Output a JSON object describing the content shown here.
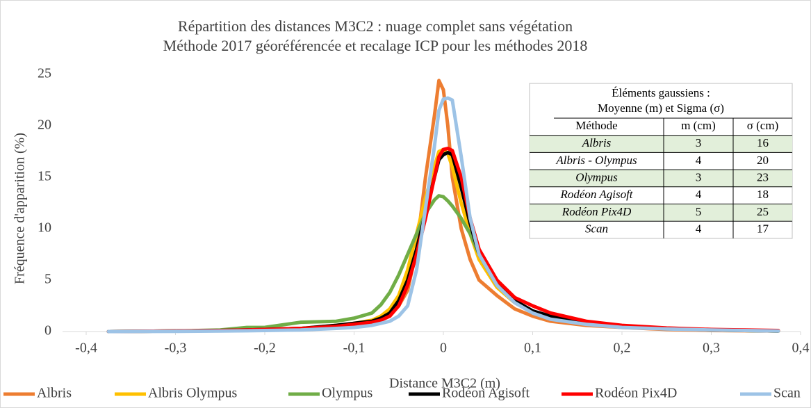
{
  "chart_data": {
    "type": "line",
    "title": [
      "Répartition des distances M3C2 : nuage complet sans végétation",
      "Méthode 2017 géoréférencée et recalage ICP pour les méthodes 2018"
    ],
    "x_label": "Distance M3C2 (m)",
    "y_label": "Fréquence d'apparition (%)",
    "x": [
      -0.375,
      -0.3,
      -0.25,
      -0.22,
      -0.2,
      -0.16,
      -0.12,
      -0.1,
      -0.08,
      -0.07,
      -0.06,
      -0.05,
      -0.04,
      -0.03,
      -0.02,
      -0.01,
      -0.005,
      0,
      0.005,
      0.01,
      0.02,
      0.03,
      0.04,
      0.06,
      0.08,
      0.1,
      0.12,
      0.16,
      0.2,
      0.25,
      0.3,
      0.375
    ],
    "series": [
      {
        "name": "Albris",
        "color": "#ed7d31",
        "values": [
          0,
          0.05,
          0.1,
          0.15,
          0.2,
          0.3,
          0.5,
          0.7,
          1,
          1.3,
          1.7,
          2.5,
          4,
          8,
          15,
          21,
          24.4,
          23.5,
          20,
          15,
          10,
          7,
          5,
          3.5,
          2.2,
          1.5,
          1,
          0.6,
          0.4,
          0.2,
          0.1,
          0.05
        ]
      },
      {
        "name": "Albris Olympus",
        "color": "#ffc000",
        "values": [
          0,
          0.05,
          0.1,
          0.15,
          0.2,
          0.3,
          0.6,
          0.8,
          1.1,
          1.5,
          2.2,
          3.5,
          6,
          9.5,
          13,
          16,
          17.5,
          17.7,
          17.3,
          16,
          12.5,
          9.5,
          7,
          4.3,
          2.8,
          1.9,
          1.3,
          0.8,
          0.5,
          0.3,
          0.15,
          0.05
        ]
      },
      {
        "name": "Olympus",
        "color": "#70ad47",
        "values": [
          0,
          0.05,
          0.15,
          0.4,
          0.4,
          0.9,
          1,
          1.3,
          1.8,
          2.6,
          3.8,
          5.5,
          7.5,
          9.5,
          11.5,
          12.8,
          13.2,
          13.1,
          12.7,
          12.2,
          11,
          9.5,
          7.5,
          4.8,
          3,
          2,
          1.4,
          0.8,
          0.5,
          0.3,
          0.15,
          0.05
        ]
      },
      {
        "name": "Rodéon Agisoft",
        "color": "#000000",
        "values": [
          0,
          0.05,
          0.1,
          0.15,
          0.2,
          0.3,
          0.6,
          0.8,
          1,
          1.3,
          1.8,
          3,
          5,
          8,
          11.5,
          15,
          16.7,
          17.2,
          17.4,
          17.2,
          14,
          10.5,
          7.5,
          4.5,
          3,
          2,
          1.5,
          0.9,
          0.5,
          0.3,
          0.15,
          0.05
        ]
      },
      {
        "name": "Rodéon Pix4D",
        "color": "#ff0000",
        "values": [
          0,
          0.05,
          0.1,
          0.15,
          0.2,
          0.3,
          0.5,
          0.7,
          0.9,
          1.1,
          1.5,
          2.5,
          4.5,
          7.5,
          11,
          15,
          17,
          17.7,
          17.8,
          17.6,
          15,
          11,
          8,
          5,
          3.3,
          2.5,
          1.8,
          1,
          0.6,
          0.35,
          0.2,
          0.1
        ]
      },
      {
        "name": "Scan",
        "color": "#9dc3e6",
        "values": [
          0,
          0.02,
          0.05,
          0.08,
          0.1,
          0.15,
          0.3,
          0.4,
          0.6,
          0.8,
          1,
          1.5,
          2.5,
          6,
          12,
          18,
          21.5,
          22.6,
          22.7,
          22.5,
          17,
          11,
          7.5,
          4.5,
          2.8,
          1.8,
          1.2,
          0.7,
          0.4,
          0.25,
          0.15,
          0.05
        ]
      }
    ],
    "xlim": [
      -0.4,
      0.4
    ],
    "xticks": [
      {
        "value": -0.4,
        "label": "-0,4"
      },
      {
        "value": -0.3,
        "label": "-0,3"
      },
      {
        "value": -0.2,
        "label": "-0,2"
      },
      {
        "value": -0.1,
        "label": "-0,1"
      },
      0,
      {
        "value": 0.1,
        "label": "0,1"
      },
      {
        "value": 0.2,
        "label": "0,2"
      },
      {
        "value": 0.3,
        "label": "0,3"
      },
      {
        "value": 0.4,
        "label": "0,4"
      }
    ],
    "ylim": [
      0,
      25
    ],
    "yticks": [
      0,
      5,
      10,
      15,
      20,
      25
    ],
    "grid": false,
    "legend": "bottom"
  },
  "table": {
    "title": [
      "Éléments gaussiens :",
      "Moyenne (m) et Sigma (σ)"
    ],
    "header": [
      "Méthode",
      "m (cm)",
      "σ (cm)"
    ],
    "rows": [
      [
        "Albris",
        3,
        16
      ],
      [
        "Albris - Olympus",
        4,
        20
      ],
      [
        "Olympus",
        3,
        23
      ],
      [
        "Rodéon Agisoft",
        4,
        18
      ],
      [
        "Rodéon Pix4D",
        5,
        25
      ],
      [
        "Scan",
        4,
        17
      ]
    ]
  }
}
